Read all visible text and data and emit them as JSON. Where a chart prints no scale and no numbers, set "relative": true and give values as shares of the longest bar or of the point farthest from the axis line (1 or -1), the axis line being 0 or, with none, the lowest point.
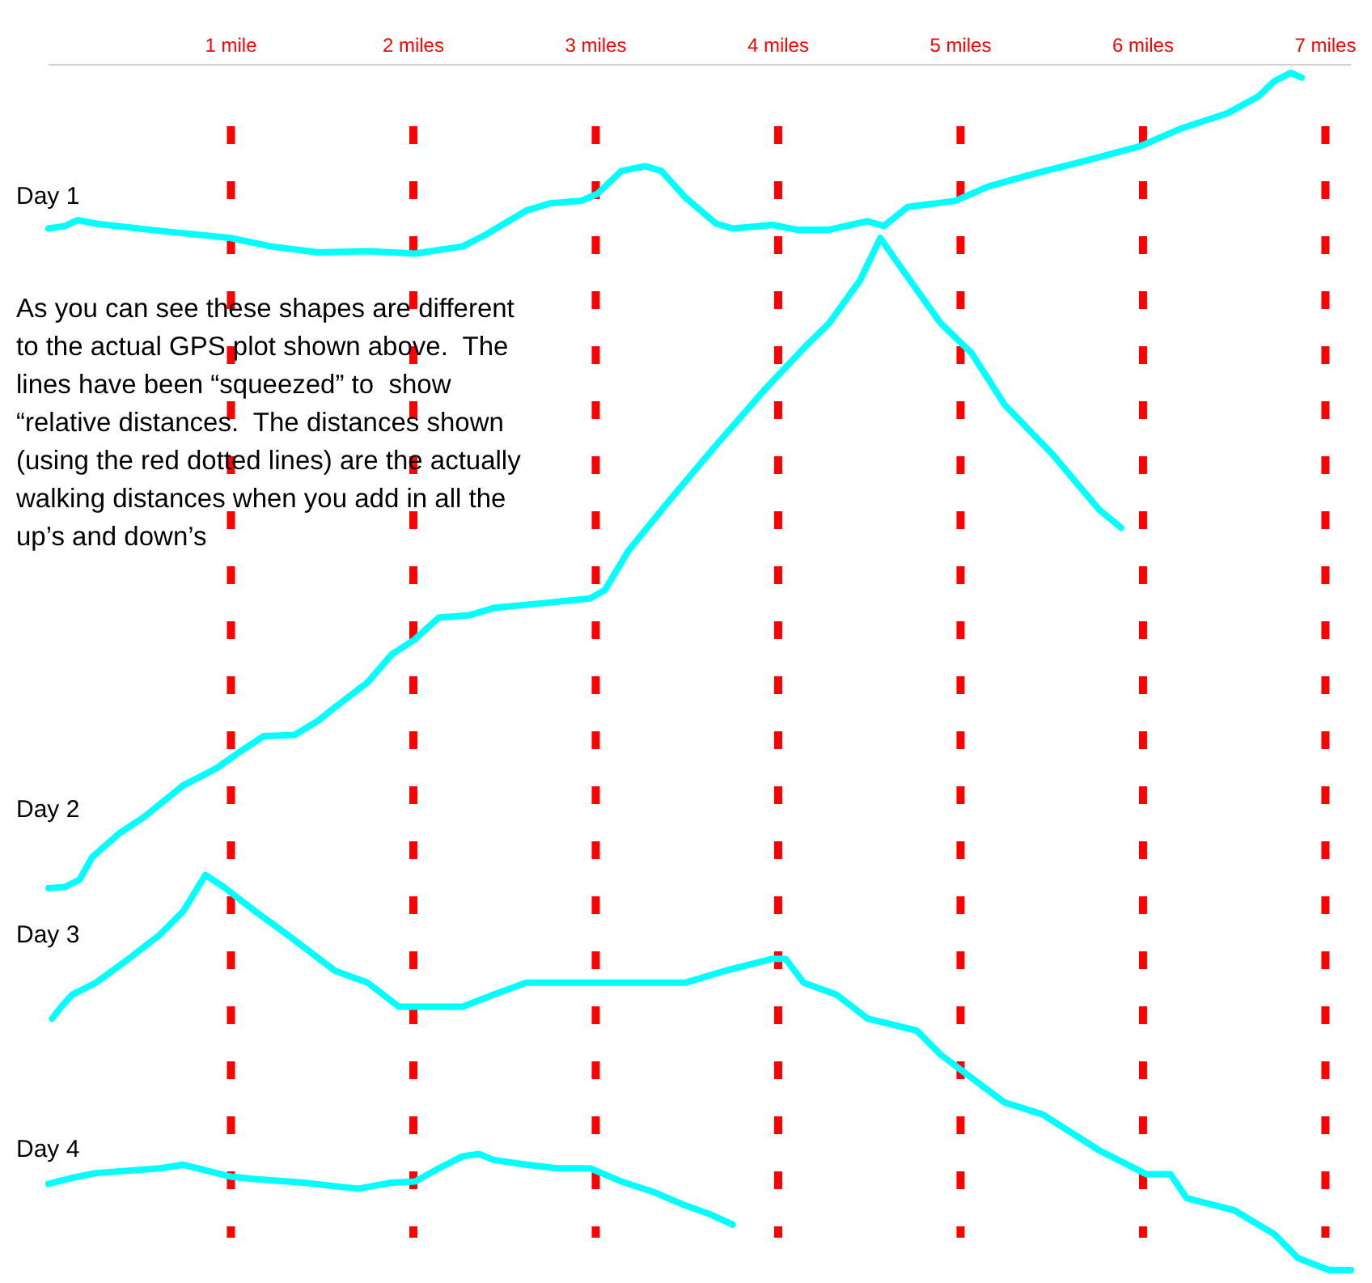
{
  "chart_data": {
    "type": "line",
    "relative": true,
    "xlim": [
      0,
      7.14
    ],
    "grid": "x",
    "xticks": [
      {
        "value": 1,
        "label": "1 mile"
      },
      {
        "value": 2,
        "label": "2 miles"
      },
      {
        "value": 3,
        "label": "3 miles"
      },
      {
        "value": 4,
        "label": "4 miles"
      },
      {
        "value": 5,
        "label": "5 miles"
      },
      {
        "value": 6,
        "label": "6 miles"
      },
      {
        "value": 7,
        "label": "7 miles"
      }
    ],
    "series": [
      {
        "name": "Day 1",
        "color": "#00ffff",
        "x": [
          0,
          0.09,
          0.16,
          0.26,
          0.61,
          1.0,
          1.22,
          1.48,
          1.75,
          2.01,
          2.27,
          2.4,
          2.62,
          2.75,
          2.92,
          3.01,
          3.14,
          3.27,
          3.36,
          3.49,
          3.66,
          3.75,
          3.97,
          4.1,
          4.28,
          4.49,
          4.58,
          4.71,
          4.97,
          5.15,
          5.41,
          5.67,
          5.99,
          6.2,
          6.46,
          6.63,
          6.72,
          6.81,
          6.87
        ],
        "values": [
          0.87,
          0.872,
          0.877,
          0.874,
          0.868,
          0.862,
          0.855,
          0.85,
          0.851,
          0.849,
          0.855,
          0.865,
          0.885,
          0.891,
          0.893,
          0.899,
          0.918,
          0.922,
          0.918,
          0.896,
          0.874,
          0.87,
          0.873,
          0.869,
          0.869,
          0.876,
          0.872,
          0.888,
          0.893,
          0.905,
          0.916,
          0.926,
          0.939,
          0.953,
          0.966,
          0.98,
          0.993,
          1,
          0.996
        ]
      },
      {
        "name": "Day 2",
        "color": "#00ffff",
        "x": [
          0,
          0.09,
          0.17,
          0.24,
          0.39,
          0.52,
          0.74,
          0.92,
          1.04,
          1.18,
          1.35,
          1.48,
          1.57,
          1.75,
          1.88,
          2.01,
          2.14,
          2.31,
          2.44,
          2.71,
          2.97,
          3.05,
          3.18,
          3.4,
          3.66,
          3.93,
          4.14,
          4.28,
          4.45,
          4.56,
          4.67,
          4.89,
          5.06,
          5.24,
          5.5,
          5.76,
          5.88
        ],
        "values": [
          0.319,
          0.32,
          0.326,
          0.345,
          0.365,
          0.378,
          0.405,
          0.419,
          0.432,
          0.446,
          0.447,
          0.459,
          0.47,
          0.491,
          0.514,
          0.527,
          0.545,
          0.547,
          0.553,
          0.557,
          0.561,
          0.568,
          0.601,
          0.642,
          0.689,
          0.736,
          0.77,
          0.791,
          0.827,
          0.862,
          0.838,
          0.791,
          0.766,
          0.723,
          0.682,
          0.635,
          0.62
        ]
      },
      {
        "name": "Day 3",
        "color": "#00ffff",
        "x": [
          0.02,
          0.07,
          0.13,
          0.26,
          0.44,
          0.61,
          0.74,
          0.86,
          0.96,
          1.13,
          1.31,
          1.57,
          1.75,
          1.92,
          2.05,
          2.27,
          2.44,
          2.62,
          2.84,
          2.97,
          3.1,
          3.23,
          3.49,
          3.71,
          3.97,
          4.04,
          4.14,
          4.32,
          4.49,
          4.76,
          4.89,
          5.24,
          5.45,
          5.76,
          6.02,
          6.15,
          6.24,
          6.5,
          6.72,
          6.85,
          7.02,
          7.14
        ],
        "values": [
          0.21,
          0.22,
          0.23,
          0.24,
          0.26,
          0.28,
          0.3,
          0.33,
          0.32,
          0.3,
          0.28,
          0.25,
          0.24,
          0.22,
          0.22,
          0.22,
          0.23,
          0.24,
          0.24,
          0.24,
          0.24,
          0.24,
          0.24,
          0.25,
          0.26,
          0.26,
          0.24,
          0.23,
          0.21,
          0.2,
          0.18,
          0.14,
          0.13,
          0.1,
          0.08,
          0.08,
          0.06,
          0.05,
          0.03,
          0.01,
          0.0,
          0
        ]
      },
      {
        "name": "Day 4",
        "color": "#00ffff",
        "x": [
          0,
          0.13,
          0.26,
          0.61,
          0.74,
          1.0,
          1.13,
          1.4,
          1.57,
          1.7,
          1.88,
          2.01,
          2.14,
          2.27,
          2.36,
          2.44,
          2.62,
          2.79,
          2.97,
          3.14,
          3.32,
          3.49,
          3.62,
          3.75
        ],
        "values": [
          0.072,
          0.077,
          0.081,
          0.085,
          0.088,
          0.078,
          0.076,
          0.073,
          0.07,
          0.068,
          0.073,
          0.074,
          0.085,
          0.095,
          0.097,
          0.092,
          0.088,
          0.085,
          0.085,
          0.074,
          0.065,
          0.054,
          0.047,
          0.038
        ]
      }
    ],
    "annotations": [
      "As you can see these shapes are different\nto the actual GPS plot shown above.  The\nlines have been “squeezed” to  show\n“relative distances.  The distances shown\n(using the red dotted lines) are the actually\nwalking distances when you add in all the\nup’s and down’s"
    ]
  }
}
